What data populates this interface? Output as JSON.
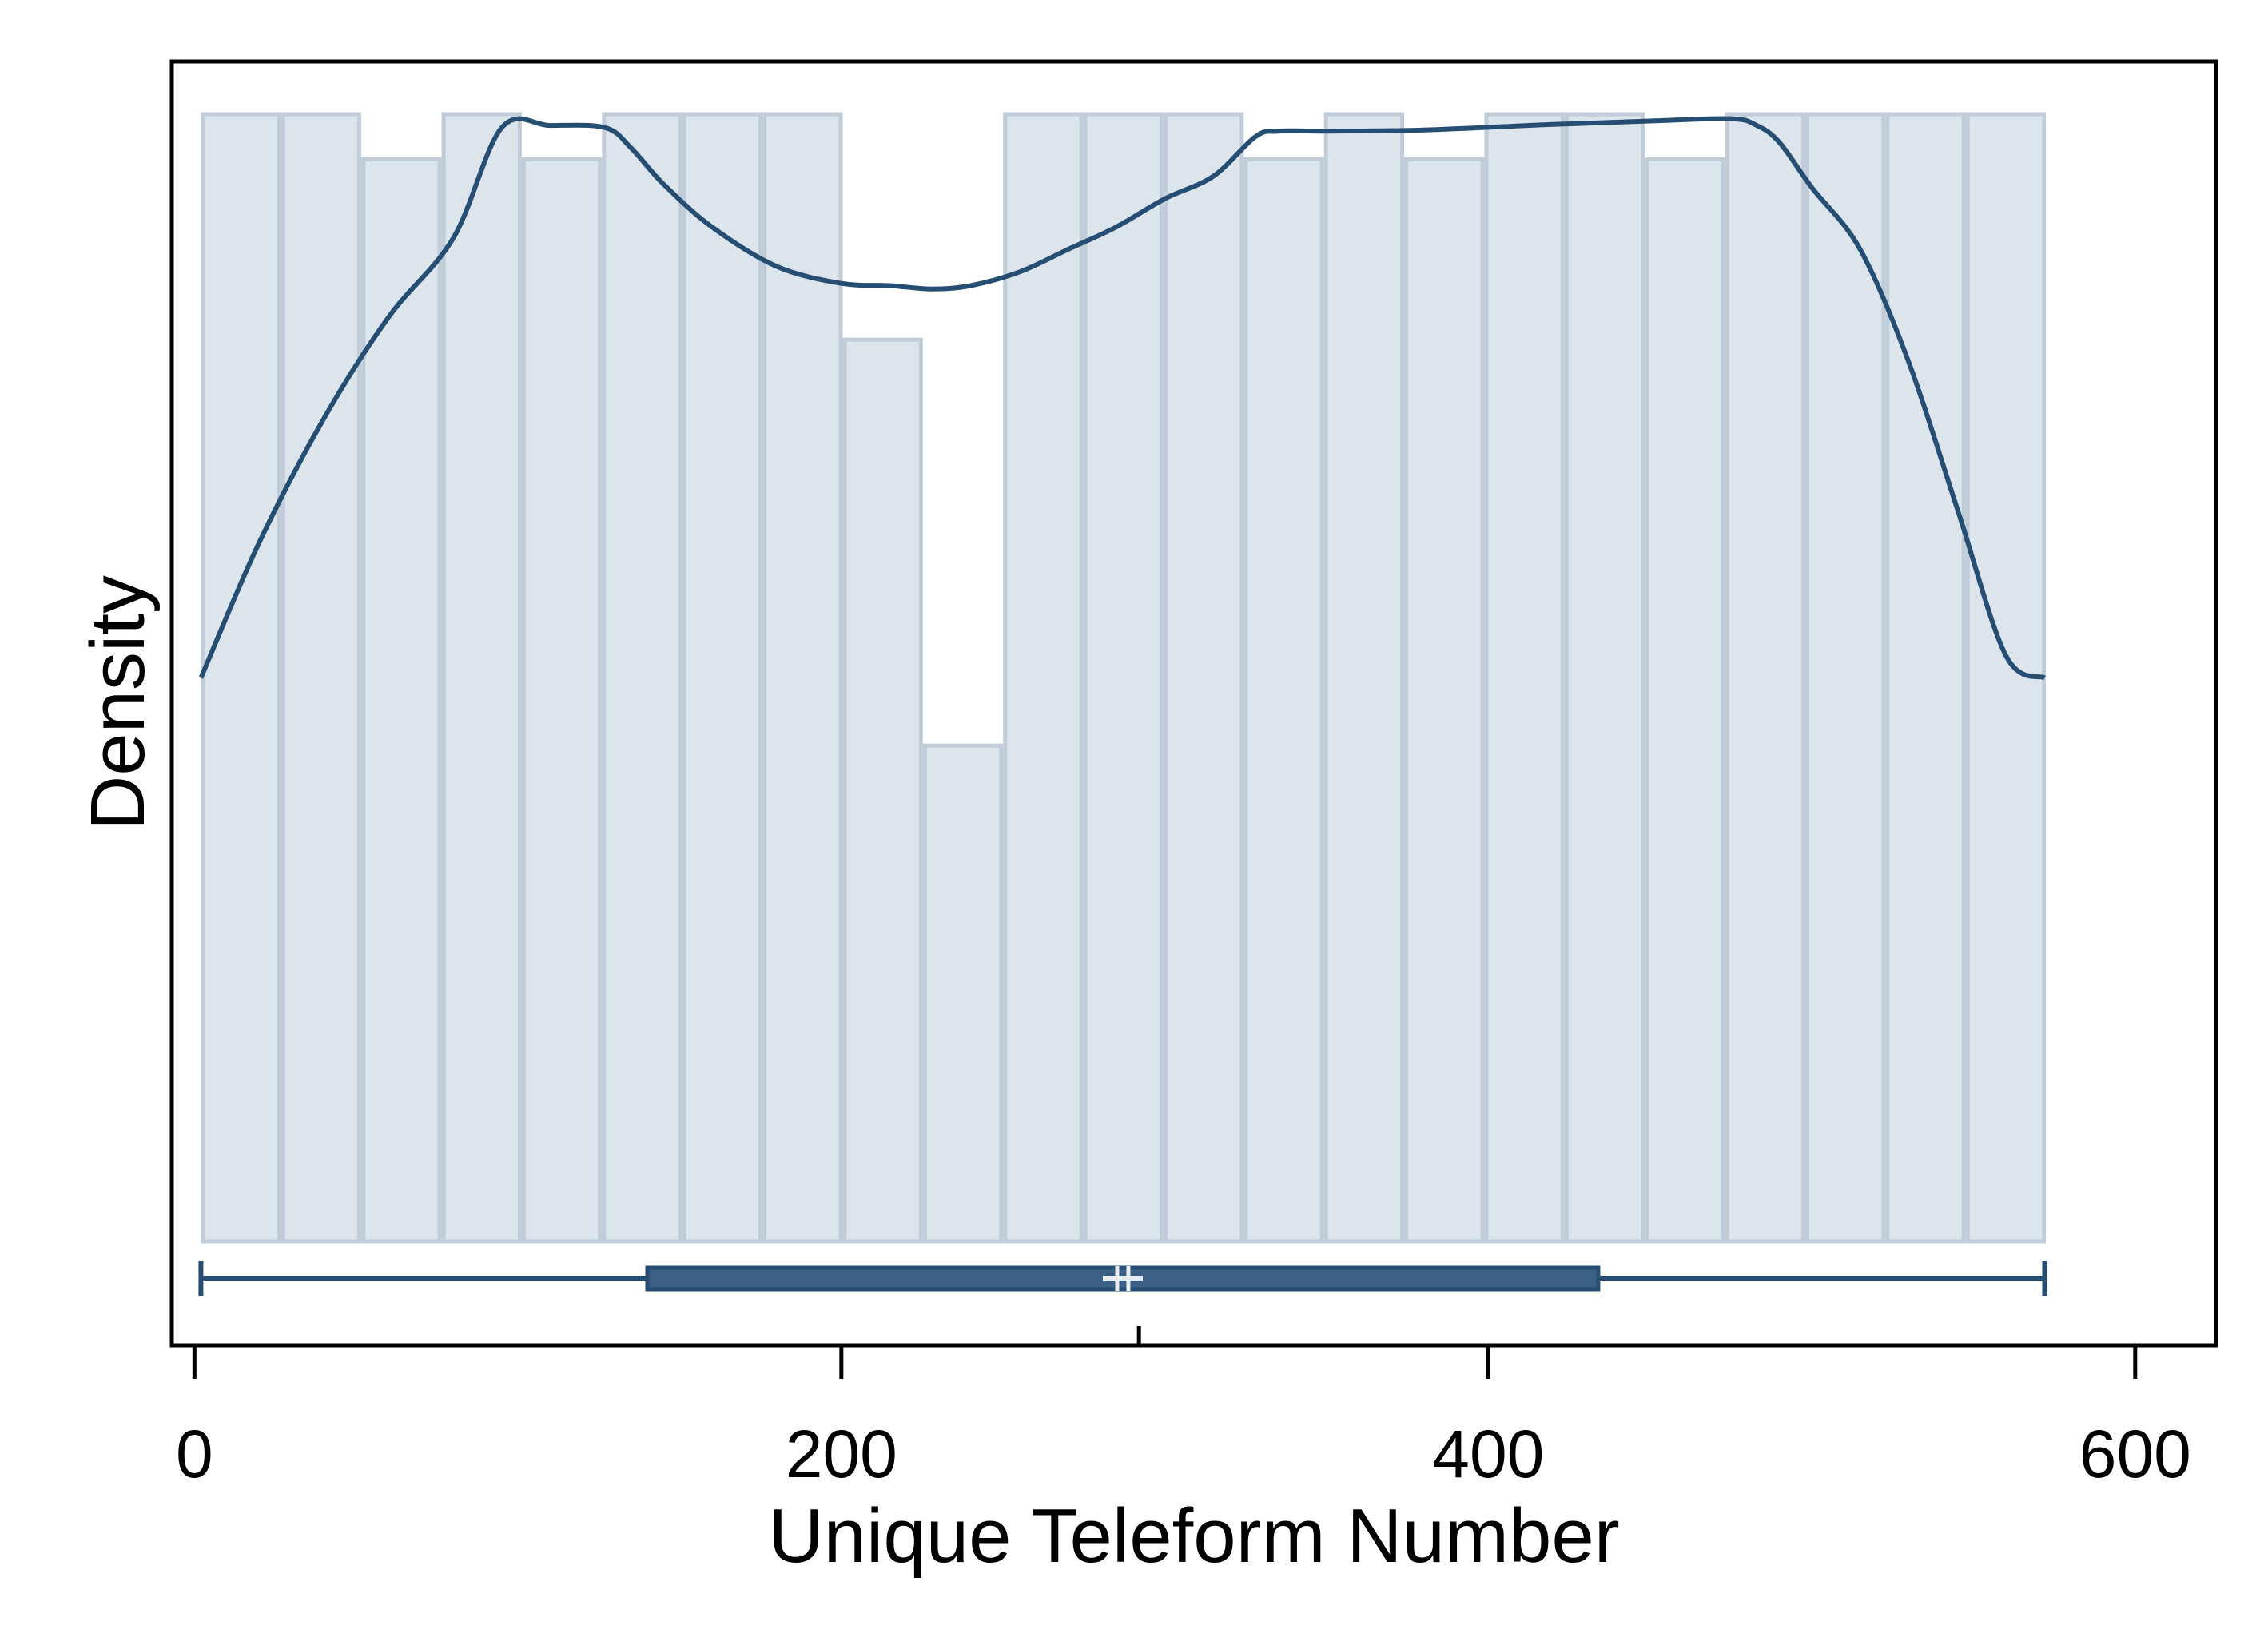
{
  "chart_data": {
    "type": "histogram",
    "xlabel": "Unique Teleform Number",
    "ylabel": "Density",
    "xlim": [
      -7,
      625
    ],
    "ylim": [
      0,
      100
    ],
    "x_ticks": [
      0,
      200,
      400,
      600
    ],
    "y_ticks": [],
    "grid": false,
    "colors": {
      "bar_fill": "#dce4ec",
      "bar_stroke": "#c0cdd8",
      "line": "#264e72",
      "box_fill": "#3c5f85",
      "box_stroke": "#264e72",
      "median_mark": "#e6ecf2",
      "frame": "#000000"
    },
    "histogram": {
      "bin_edges": [
        2,
        26.8,
        51.6,
        76.4,
        101.2,
        126,
        150.8,
        175.6,
        200.4,
        225.2,
        250,
        274.8,
        299.6,
        324.4,
        349.2,
        374,
        398.8,
        423.6,
        448.4,
        473.2,
        498,
        522.8,
        547.6,
        572.4
      ],
      "density": [
        100,
        100,
        96,
        100,
        96,
        100,
        100,
        100,
        80,
        44,
        100,
        100,
        100,
        96,
        100,
        96,
        100,
        100,
        96,
        100,
        100,
        100,
        100
      ]
    },
    "kde": {
      "x": [
        2,
        20,
        40,
        60,
        80,
        95,
        110,
        127,
        135,
        145,
        160,
        180,
        200,
        215,
        228,
        240,
        255,
        270,
        285,
        300,
        315,
        328,
        335,
        350,
        380,
        420,
        450,
        475,
        483,
        490,
        500,
        515,
        530,
        545,
        560,
        572
      ],
      "y": [
        50,
        62,
        73,
        82,
        89,
        98.8,
        99,
        98.8,
        97,
        93.8,
        90,
        86.5,
        85,
        84.8,
        84.5,
        84.8,
        86,
        88,
        90,
        92.5,
        94.5,
        98,
        98.5,
        98.5,
        98.6,
        99.1,
        99.4,
        99.6,
        99,
        97.5,
        93.5,
        88,
        78,
        65,
        52,
        50
      ]
    },
    "boxplot": {
      "whisker_low": 2,
      "q1": 140,
      "median": 287,
      "mean": 292,
      "q3": 434,
      "whisker_high": 572
    }
  }
}
